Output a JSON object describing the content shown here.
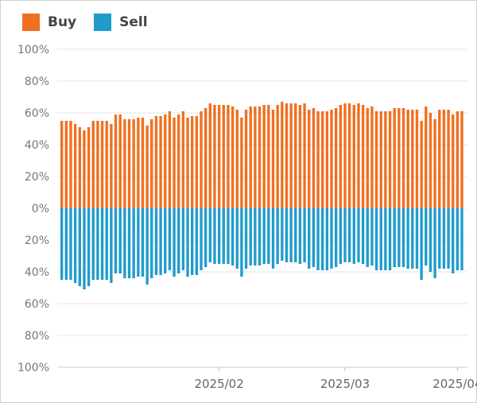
{
  "chart_data": {
    "type": "bar",
    "stacked": "diverging",
    "title": "",
    "xlabel": "",
    "ylabel": "",
    "legend_position": "top-left",
    "series": [
      {
        "name": "Buy",
        "color": "#f07020"
      },
      {
        "name": "Sell",
        "color": "#1f9ccb"
      }
    ],
    "y_ticks": [
      "100%",
      "80%",
      "60%",
      "40%",
      "20%",
      "0%",
      "20%",
      "40%",
      "60%",
      "80%",
      "100%"
    ],
    "ylim": [
      -100,
      100
    ],
    "x_ticks": [
      {
        "label": "2025/02",
        "index": 35
      },
      {
        "label": "2025/03",
        "index": 63
      },
      {
        "label": "2025/04",
        "index": 88
      }
    ],
    "buy": [
      55,
      55,
      55,
      53,
      51,
      49,
      51,
      55,
      55,
      55,
      55,
      53,
      59,
      59,
      56,
      56,
      56,
      57,
      57,
      52,
      56,
      58,
      58,
      59,
      61,
      57,
      59,
      61,
      57,
      58,
      58,
      61,
      63,
      66,
      65,
      65,
      65,
      65,
      64,
      62,
      57,
      62,
      64,
      64,
      64,
      65,
      65,
      62,
      65,
      67,
      66,
      66,
      66,
      65,
      66,
      62,
      63,
      61,
      61,
      61,
      62,
      63,
      65,
      66,
      66,
      65,
      66,
      65,
      63,
      64,
      61,
      61,
      61,
      61,
      63,
      63,
      63,
      62,
      62,
      62,
      55,
      64,
      60,
      56,
      62,
      62,
      62,
      59,
      61,
      61
    ],
    "sell": [
      45,
      45,
      45,
      47,
      49,
      51,
      49,
      45,
      45,
      45,
      45,
      47,
      41,
      41,
      44,
      44,
      44,
      43,
      43,
      48,
      44,
      42,
      42,
      41,
      39,
      43,
      41,
      39,
      43,
      42,
      42,
      39,
      37,
      34,
      35,
      35,
      35,
      35,
      36,
      38,
      43,
      38,
      36,
      36,
      36,
      35,
      35,
      38,
      35,
      33,
      34,
      34,
      34,
      35,
      34,
      38,
      37,
      39,
      39,
      39,
      38,
      37,
      35,
      34,
      34,
      35,
      34,
      35,
      37,
      36,
      39,
      39,
      39,
      39,
      37,
      37,
      37,
      38,
      38,
      38,
      45,
      36,
      40,
      44,
      38,
      38,
      38,
      41,
      39,
      39
    ]
  }
}
